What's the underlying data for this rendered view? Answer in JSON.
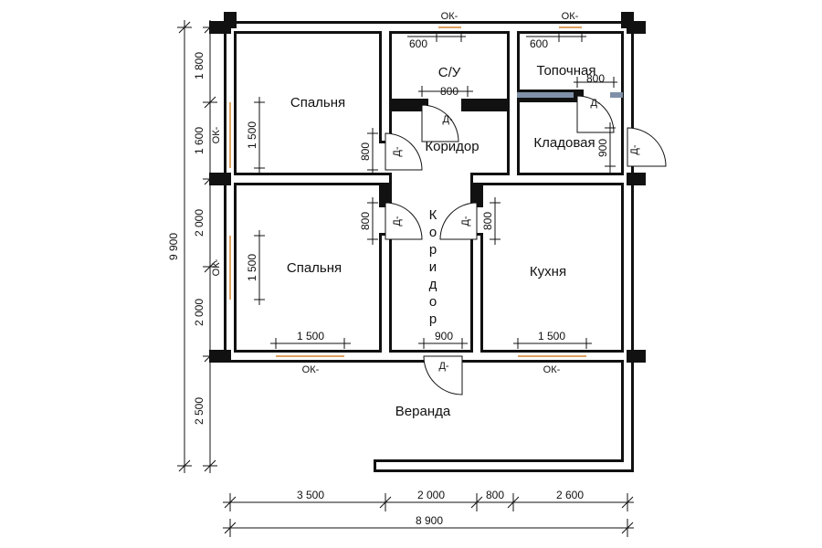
{
  "rooms": {
    "bedroom_top": "Спальня",
    "bath": "С/У",
    "boiler": "Топочная",
    "corridor_top": "Коридор",
    "pantry": "Кладовая",
    "corridor_vertical": [
      "К",
      "о",
      "р",
      "и",
      "д",
      "о",
      "р"
    ],
    "bedroom_bottom": "Спальня",
    "kitchen": "Кухня",
    "veranda": "Веранда"
  },
  "labels": {
    "window": "ОК-",
    "door": "Д-"
  },
  "dimensions": {
    "left": [
      "1 800",
      "1 600",
      "2 000",
      "2 000",
      "2 500"
    ],
    "left_total": "9 900",
    "bottom": [
      "3 500",
      "2 000",
      "800",
      "2 600"
    ],
    "bottom_total": "8 900",
    "bath_window": "600",
    "boiler_window": "600",
    "bath_door": "800",
    "boiler_door": "800",
    "bedroom_top_window": "1 500",
    "bedroom_top_door": "800",
    "pantry_door": "900",
    "bedroom_bottom_window_side": "1 500",
    "bedroom_bottom_door": "800",
    "kitchen_door": "800",
    "bedroom_bottom_window": "1 500",
    "veranda_door": "900",
    "kitchen_window": "1 500"
  }
}
